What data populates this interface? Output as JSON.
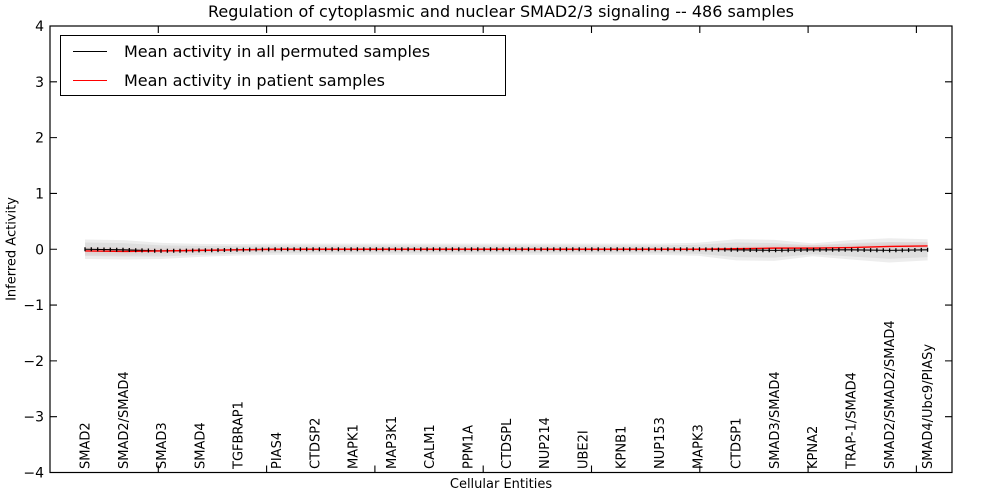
{
  "title": "Regulation of cytoplasmic and nuclear SMAD2/3 signaling -- 486 samples",
  "legend": {
    "entries": [
      {
        "label": "Mean activity in all permuted samples",
        "color": "#000000"
      },
      {
        "label": "Mean activity in patient samples",
        "color": "#ff0000"
      }
    ]
  },
  "chart_data": {
    "type": "line",
    "title": "Regulation of cytoplasmic and nuclear SMAD2/3 signaling -- 486 samples",
    "xlabel": "Cellular Entities",
    "ylabel": "Inferred Activity",
    "ylim": [
      -4,
      4
    ],
    "ytick_values": [
      4,
      3,
      2,
      1,
      0,
      -1,
      -2,
      -3,
      -4
    ],
    "ytick_labels": [
      "4",
      "3",
      "2",
      "1",
      "0",
      "−1",
      "−2",
      "−3",
      "−4"
    ],
    "grid": false,
    "legend_position": "upper left",
    "categories": [
      "SMAD2",
      "SMAD2/SMAD4",
      "SMAD3",
      "SMAD4",
      "TGFBRAP1",
      "PIAS4",
      "CTDSP2",
      "MAPK1",
      "MAP3K1",
      "CALM1",
      "PPM1A",
      "CTDSPL",
      "NUP214",
      "UBE2I",
      "KPNB1",
      "NUP153",
      "MAPK3",
      "CTDSP1",
      "SMAD3/SMAD4",
      "KPNA2",
      "TRAP-1/SMAD4",
      "SMAD2/SMAD2/SMAD4",
      "SMAD4/Ubc9/PIASy"
    ],
    "series": [
      {
        "name": "Mean activity in all permuted samples",
        "color": "#000000",
        "values": [
          0.0,
          -0.01,
          -0.03,
          -0.02,
          -0.01,
          0.0,
          0.0,
          0.0,
          0.0,
          0.0,
          0.0,
          0.0,
          0.0,
          0.0,
          0.0,
          0.0,
          0.0,
          -0.01,
          -0.02,
          -0.01,
          -0.01,
          -0.02,
          -0.01
        ],
        "band_halfwidth": [
          0.12,
          0.12,
          0.1,
          0.08,
          0.07,
          0.07,
          0.07,
          0.07,
          0.07,
          0.07,
          0.07,
          0.07,
          0.07,
          0.07,
          0.07,
          0.07,
          0.08,
          0.13,
          0.13,
          0.08,
          0.12,
          0.15,
          0.13
        ],
        "band_color": "#d6d6d6"
      },
      {
        "name": "Mean activity in patient samples",
        "color": "#ff0000",
        "values": [
          -0.03,
          -0.04,
          -0.03,
          -0.02,
          -0.01,
          0.0,
          0.0,
          0.0,
          0.0,
          0.0,
          0.0,
          0.0,
          0.0,
          0.0,
          0.0,
          0.0,
          0.0,
          0.01,
          0.02,
          0.02,
          0.03,
          0.05,
          0.06
        ],
        "band_halfwidth": [
          0.05,
          0.05,
          0.04,
          0.03,
          0.02,
          0.02,
          0.02,
          0.02,
          0.02,
          0.02,
          0.02,
          0.02,
          0.02,
          0.02,
          0.02,
          0.02,
          0.02,
          0.03,
          0.04,
          0.04,
          0.04,
          0.05,
          0.05
        ],
        "band_color": "#ffb6b6"
      }
    ]
  }
}
